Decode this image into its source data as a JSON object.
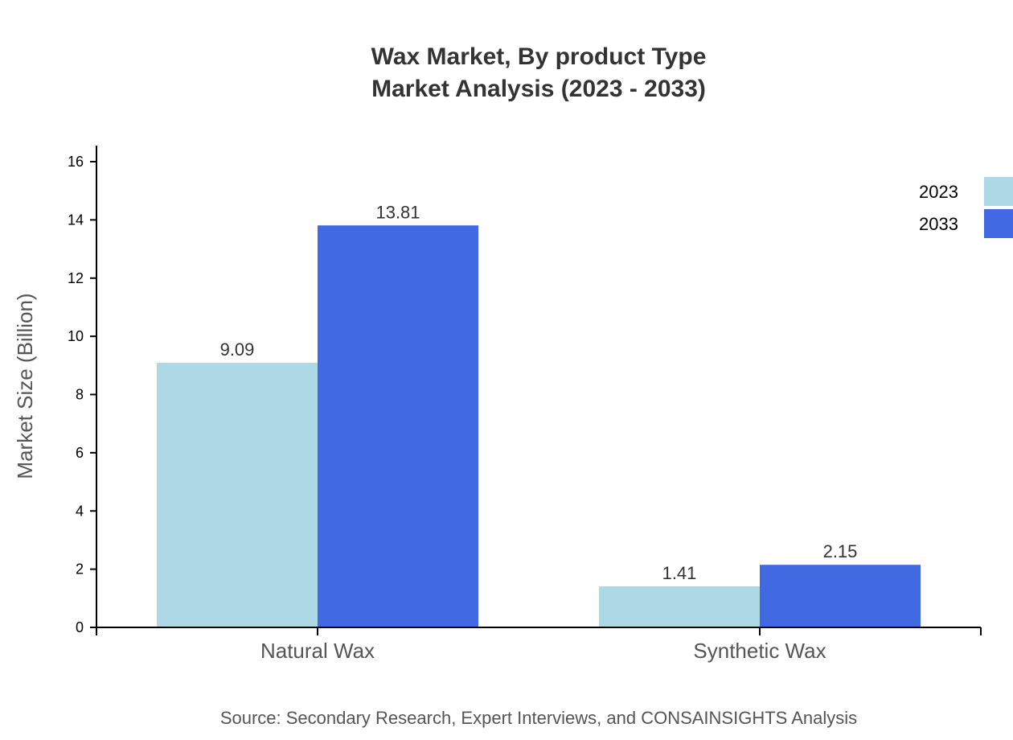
{
  "chart_data": {
    "type": "bar",
    "title": [
      "Wax Market, By product Type",
      "Market Analysis (2023 - 2033)"
    ],
    "xlabel": "",
    "ylabel": "Market Size (Billion)",
    "categories": [
      "Natural Wax",
      "Synthetic Wax"
    ],
    "series": [
      {
        "name": "2023",
        "values": [
          9.09,
          1.41
        ],
        "labels": [
          "9.09",
          "1.41"
        ],
        "color": "#ADD8E6"
      },
      {
        "name": "2033",
        "values": [
          13.81,
          2.15
        ],
        "labels": [
          "13.81",
          "2.15"
        ],
        "color": "#4169E1"
      }
    ],
    "ylim": [
      0,
      16.55
    ],
    "yticks": [
      0,
      2,
      4,
      6,
      8,
      10,
      12,
      14,
      16
    ],
    "grid": false,
    "legend": "top-right",
    "source": "Source: Secondary Research, Expert Interviews, and CONSAINSIGHTS Analysis"
  }
}
